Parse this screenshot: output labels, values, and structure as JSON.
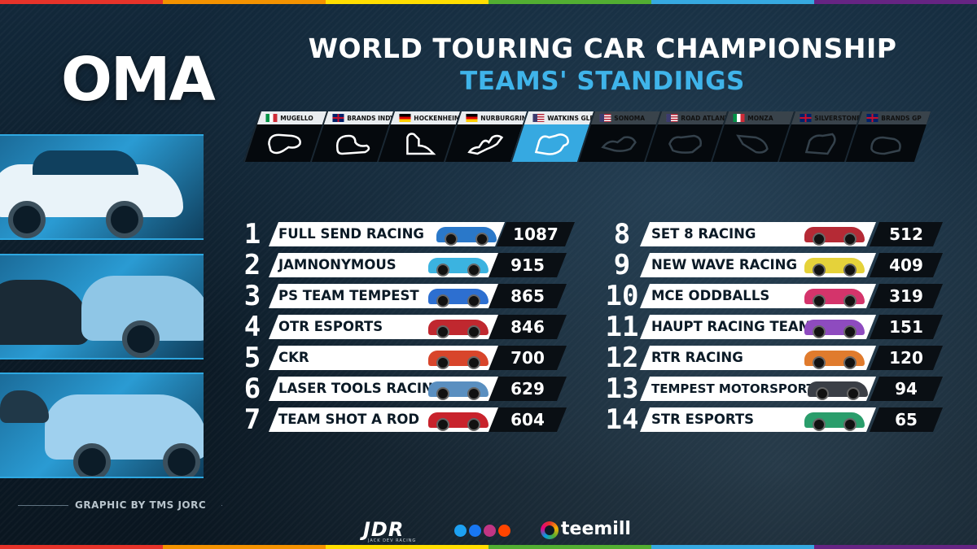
{
  "brand": {
    "logo_text": "OMA"
  },
  "header": {
    "title": "WORLD TOURING CAR CHAMPIONSHIP",
    "subtitle": "TEAMS' STANDINGS"
  },
  "colors": {
    "accent_blue": "#36a9e1",
    "row_bar": "#ffffff",
    "points_box": "#0a0f14",
    "background": "#0b1a26"
  },
  "tracks": [
    {
      "name": "MUGELLO",
      "flag": "italy-flag",
      "state": "done"
    },
    {
      "name": "BRANDS INDY",
      "flag": "uk-flag",
      "state": "done"
    },
    {
      "name": "HOCKENHEIM",
      "flag": "germany-flag",
      "state": "done"
    },
    {
      "name": "NURBURGRING",
      "flag": "germany-flag",
      "state": "done"
    },
    {
      "name": "WATKINS GLEN",
      "flag": "usa-flag",
      "state": "current"
    },
    {
      "name": "SONOMA",
      "flag": "usa-flag",
      "state": "upcoming"
    },
    {
      "name": "ROAD ATLANTA",
      "flag": "usa-flag",
      "state": "upcoming"
    },
    {
      "name": "MONZA",
      "flag": "italy-flag",
      "state": "upcoming"
    },
    {
      "name": "SILVERSTONE",
      "flag": "uk-flag",
      "state": "upcoming"
    },
    {
      "name": "BRANDS GP",
      "flag": "uk-flag",
      "state": "upcoming"
    }
  ],
  "standings_left": [
    {
      "pos": "1",
      "team": "FULL SEND RACING",
      "points": "1087",
      "car_color": "#2a78c9"
    },
    {
      "pos": "2",
      "team": "JAMNONYMOUS",
      "points": "915",
      "car_color": "#3bb3e0"
    },
    {
      "pos": "3",
      "team": "PS TEAM TEMPEST",
      "points": "865",
      "car_color": "#2d6fd0"
    },
    {
      "pos": "4",
      "team": "OTR ESPORTS",
      "points": "846",
      "car_color": "#c0282f"
    },
    {
      "pos": "5",
      "team": "CKR",
      "points": "700",
      "car_color": "#d8452b"
    },
    {
      "pos": "6",
      "team": "LASER TOOLS RACING",
      "points": "629",
      "car_color": "#5a8fc0"
    },
    {
      "pos": "7",
      "team": "TEAM SHOT A ROD",
      "points": "604",
      "car_color": "#c8232c"
    }
  ],
  "standings_right": [
    {
      "pos": "8",
      "team": "SET 8 RACING",
      "points": "512",
      "car_color": "#b52a35"
    },
    {
      "pos": "9",
      "team": "NEW WAVE RACING",
      "points": "409",
      "car_color": "#e5d23a"
    },
    {
      "pos": "10",
      "team": "MCE ODDBALLS",
      "points": "319",
      "car_color": "#d4346b"
    },
    {
      "pos": "11",
      "team": "HAUPT RACING TEAM",
      "points": "151",
      "car_color": "#8e4bbf"
    },
    {
      "pos": "12",
      "team": "RTR RACING",
      "points": "120",
      "car_color": "#e07b2d"
    },
    {
      "pos": "13",
      "team": "TEMPEST MOTORSPORT",
      "points": "94",
      "car_color": "#3b3f46"
    },
    {
      "pos": "14",
      "team": "STR ESPORTS",
      "points": "65",
      "car_color": "#2a9d6b"
    }
  ],
  "footer": {
    "credit": "GRAPHIC BY TMS JORC",
    "sponsor_logo": "JDR",
    "sponsor_tagline": "JACK DEV RACING",
    "social_icons": [
      "twitter-icon",
      "facebook-icon",
      "instagram-icon",
      "reddit-icon"
    ],
    "partner": "teemill"
  }
}
